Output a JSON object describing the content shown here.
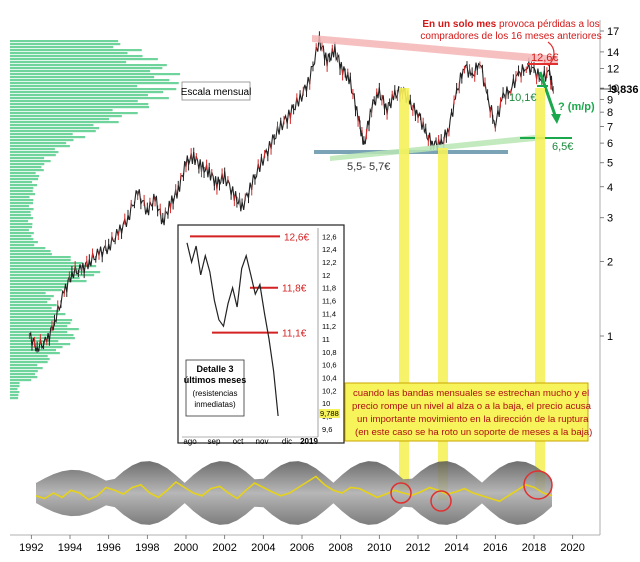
{
  "chart_data": {
    "type": "line",
    "title": "",
    "scale_label": "Escala mensual",
    "y_axis": {
      "scale": "log",
      "range": [
        0.8,
        17
      ],
      "ticks": [
        "17",
        "14",
        "12",
        "10",
        "9",
        "8",
        "7",
        "6",
        "5",
        "4",
        "3",
        "2",
        "1"
      ],
      "last_price_label": "9,836"
    },
    "x_axis": {
      "range": [
        1991,
        2021
      ],
      "ticks": [
        "1992",
        "1994",
        "1996",
        "1998",
        "2000",
        "2002",
        "2004",
        "2006",
        "2008",
        "2010",
        "2012",
        "2014",
        "2016",
        "2018",
        "2020"
      ]
    },
    "series": [
      {
        "values": [
          [
            1991.9,
            1.0
          ],
          [
            1992.3,
            0.9
          ],
          [
            1992.8,
            0.95
          ],
          [
            1993.2,
            1.15
          ],
          [
            1993.7,
            1.5
          ],
          [
            1994.1,
            1.8
          ],
          [
            1994.6,
            1.85
          ],
          [
            1995.0,
            2.0
          ],
          [
            1995.5,
            2.15
          ],
          [
            1996.0,
            2.3
          ],
          [
            1996.5,
            2.6
          ],
          [
            1997.0,
            3.0
          ],
          [
            1997.5,
            3.8
          ],
          [
            1998.0,
            3.2
          ],
          [
            1998.4,
            3.6
          ],
          [
            1998.8,
            2.9
          ],
          [
            1999.2,
            3.4
          ],
          [
            1999.6,
            3.9
          ],
          [
            2000.0,
            5.0
          ],
          [
            2000.4,
            5.3
          ],
          [
            2000.8,
            4.8
          ],
          [
            2001.2,
            4.6
          ],
          [
            2001.6,
            4.1
          ],
          [
            2002.0,
            4.4
          ],
          [
            2002.5,
            3.7
          ],
          [
            2002.9,
            3.3
          ],
          [
            2003.4,
            4.1
          ],
          [
            2003.9,
            5.0
          ],
          [
            2004.4,
            6.0
          ],
          [
            2004.9,
            7.0
          ],
          [
            2005.4,
            8.0
          ],
          [
            2005.9,
            9.0
          ],
          [
            2006.4,
            11.0
          ],
          [
            2006.9,
            15.5
          ],
          [
            2007.3,
            13.0
          ],
          [
            2007.7,
            14.0
          ],
          [
            2008.1,
            12.0
          ],
          [
            2008.5,
            10.5
          ],
          [
            2008.9,
            7.8
          ],
          [
            2009.2,
            5.8
          ],
          [
            2009.6,
            8.5
          ],
          [
            2010.0,
            9.5
          ],
          [
            2010.4,
            8.3
          ],
          [
            2010.8,
            9.3
          ],
          [
            2011.2,
            10.0
          ],
          [
            2011.6,
            8.5
          ],
          [
            2012.0,
            8.0
          ],
          [
            2012.4,
            6.5
          ],
          [
            2012.8,
            6.0
          ],
          [
            2013.2,
            5.9
          ],
          [
            2013.6,
            7.0
          ],
          [
            2014.0,
            9.5
          ],
          [
            2014.4,
            12.5
          ],
          [
            2014.8,
            11.0
          ],
          [
            2015.2,
            13.0
          ],
          [
            2015.6,
            9.0
          ],
          [
            2016.0,
            7.2
          ],
          [
            2016.4,
            9.2
          ],
          [
            2016.8,
            10.0
          ],
          [
            2017.2,
            11.3
          ],
          [
            2017.6,
            12.3
          ],
          [
            2018.0,
            11.7
          ],
          [
            2018.4,
            11.0
          ],
          [
            2018.8,
            11.5
          ],
          [
            2019.0,
            9.836
          ]
        ]
      }
    ],
    "annotations": {
      "headline_bold": "En un solo mes",
      "headline_rest": "provoca pérdidas a los compradores de los 16 meses anteriores",
      "price_high": "12,6€",
      "price_recent": "10,1€",
      "support_zone": "5,5- 5,7€",
      "target": "6,5€",
      "target_question": "? (m/p)",
      "note": "cuando las bandas mensuales se estrechan mucho y el precio rompe un nivel al alza o a la baja, el precio acusa un importante movimiento en la dirección de la ruptura (en este caso se ha roto un soporte de meses a la baja)"
    },
    "inset": {
      "title_bold": "Detalle 3 últimos meses",
      "subtitle": "(resistencias inmediatas)",
      "x_ticks": [
        "ago",
        "sep",
        "oct",
        "nov",
        "dic",
        "2019"
      ],
      "y_ticks": [
        "12,6",
        "12,4",
        "12,2",
        "12",
        "11,8",
        "11,6",
        "11,4",
        "11,2",
        "11",
        "10,8",
        "10,6",
        "10,4",
        "10,2",
        "10",
        "9,8",
        "9,6"
      ],
      "y_range": [
        9.55,
        12.7
      ],
      "last_value": "9,788",
      "levels": [
        {
          "label": "12,6€",
          "value": 12.6
        },
        {
          "label": "11,8€",
          "value": 11.8
        },
        {
          "label": "11,1€",
          "value": 11.1
        }
      ],
      "path": [
        [
          0.02,
          12.5
        ],
        [
          0.05,
          12.2
        ],
        [
          0.08,
          12.45
        ],
        [
          0.11,
          12.0
        ],
        [
          0.14,
          12.3
        ],
        [
          0.17,
          12.05
        ],
        [
          0.2,
          11.6
        ],
        [
          0.23,
          11.3
        ],
        [
          0.26,
          11.2
        ],
        [
          0.29,
          11.55
        ],
        [
          0.32,
          11.8
        ],
        [
          0.35,
          11.5
        ],
        [
          0.38,
          12.1
        ],
        [
          0.41,
          12.3
        ],
        [
          0.44,
          12.0
        ],
        [
          0.47,
          11.7
        ],
        [
          0.5,
          11.85
        ],
        [
          0.53,
          11.4
        ],
        [
          0.56,
          11.0
        ],
        [
          0.59,
          10.5
        ],
        [
          0.62,
          9.8
        ]
      ]
    },
    "oscillator": {
      "values": [
        0.45,
        0.4,
        0.5,
        0.42,
        0.55,
        0.5,
        0.38,
        0.45,
        0.6,
        0.55,
        0.48,
        0.6,
        0.65,
        0.5,
        0.42,
        0.55,
        0.7,
        0.6,
        0.5,
        0.45,
        0.58,
        0.62,
        0.5,
        0.4,
        0.55,
        0.68,
        0.6,
        0.52,
        0.45,
        0.5,
        0.6,
        0.7,
        0.8,
        0.65,
        0.55,
        0.5,
        0.6,
        0.58,
        0.5,
        0.42,
        0.48,
        0.55,
        0.5,
        0.46,
        0.52,
        0.6,
        0.55,
        0.48,
        0.52,
        0.58,
        0.5,
        0.45,
        0.4,
        0.35,
        0.45,
        0.55,
        0.65,
        0.6,
        0.5,
        0.45
      ]
    }
  }
}
